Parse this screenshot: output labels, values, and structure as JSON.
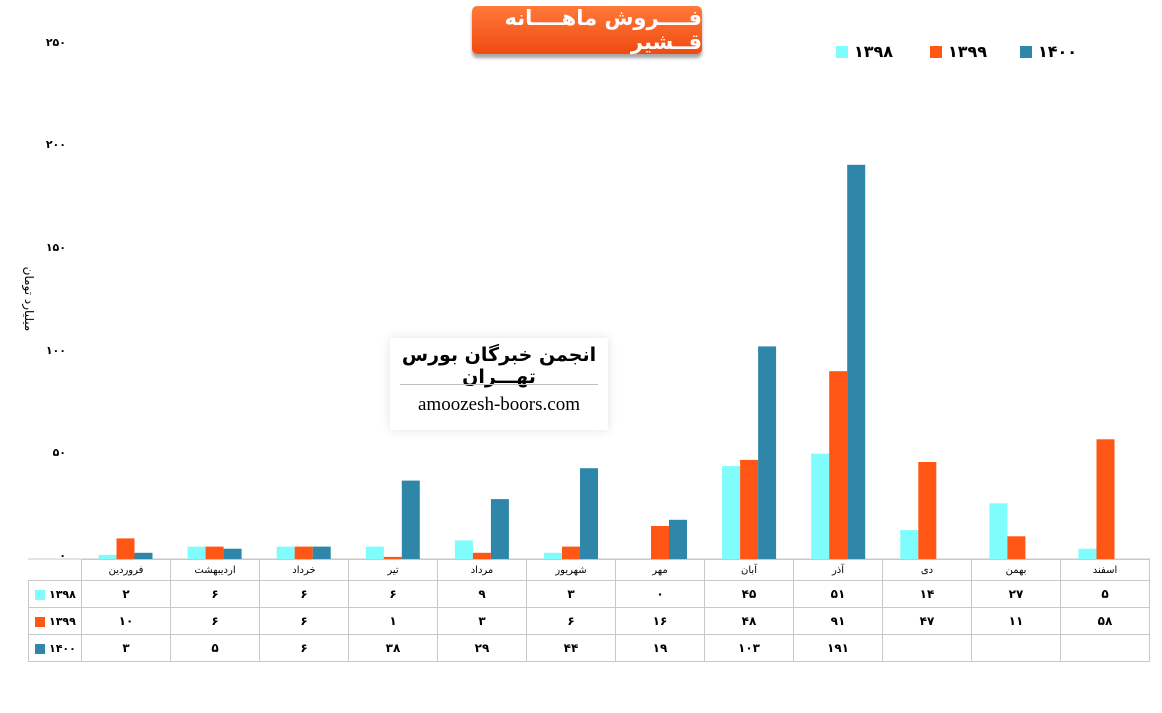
{
  "title": "فــــروش ماهــــانه قــشیر",
  "ylabel": "میلیارد تومان",
  "watermark": {
    "title": "انجمن خبرگان بورس تهـــران",
    "url": "amoozesh-boors.com"
  },
  "colors": {
    "s1398": "#7ffcfc",
    "s1399": "#ff5515",
    "s1400": "#2e86a8",
    "title_bg": "#f4561a"
  },
  "chart_data": {
    "type": "bar",
    "categories": [
      "فروردین",
      "اردیبهشت",
      "خرداد",
      "تیر",
      "مرداد",
      "شهریور",
      "مهر",
      "آبان",
      "آذر",
      "دی",
      "بهمن",
      "اسفند"
    ],
    "series": [
      {
        "name": "۱۳۹۸",
        "values": [
          2,
          6,
          6,
          6,
          9,
          3,
          0,
          45,
          51,
          14,
          27,
          5
        ],
        "labels": [
          "۲",
          "۶",
          "۶",
          "۶",
          "۹",
          "۳",
          "۰",
          "۴۵",
          "۵۱",
          "۱۴",
          "۲۷",
          "۵"
        ]
      },
      {
        "name": "۱۳۹۹",
        "values": [
          10,
          6,
          6,
          1,
          3,
          6,
          16,
          48,
          91,
          47,
          11,
          58
        ],
        "labels": [
          "۱۰",
          "۶",
          "۶",
          "۱",
          "۳",
          "۶",
          "۱۶",
          "۴۸",
          "۹۱",
          "۴۷",
          "۱۱",
          "۵۸"
        ]
      },
      {
        "name": "۱۴۰۰",
        "values": [
          3,
          5,
          6,
          38,
          29,
          44,
          19,
          103,
          191,
          null,
          null,
          null
        ],
        "labels": [
          "۳",
          "۵",
          "۶",
          "۳۸",
          "۲۹",
          "۴۴",
          "۱۹",
          "۱۰۳",
          "۱۹۱",
          "",
          "",
          ""
        ]
      }
    ],
    "ylim": [
      0,
      250
    ],
    "yticks": [
      0,
      50,
      100,
      150,
      200,
      250
    ],
    "ytick_labels": [
      "۰",
      "۵۰",
      "۱۰۰",
      "۱۵۰",
      "۲۰۰",
      "۲۵۰"
    ],
    "legend_position": "top-right",
    "grid": false
  }
}
